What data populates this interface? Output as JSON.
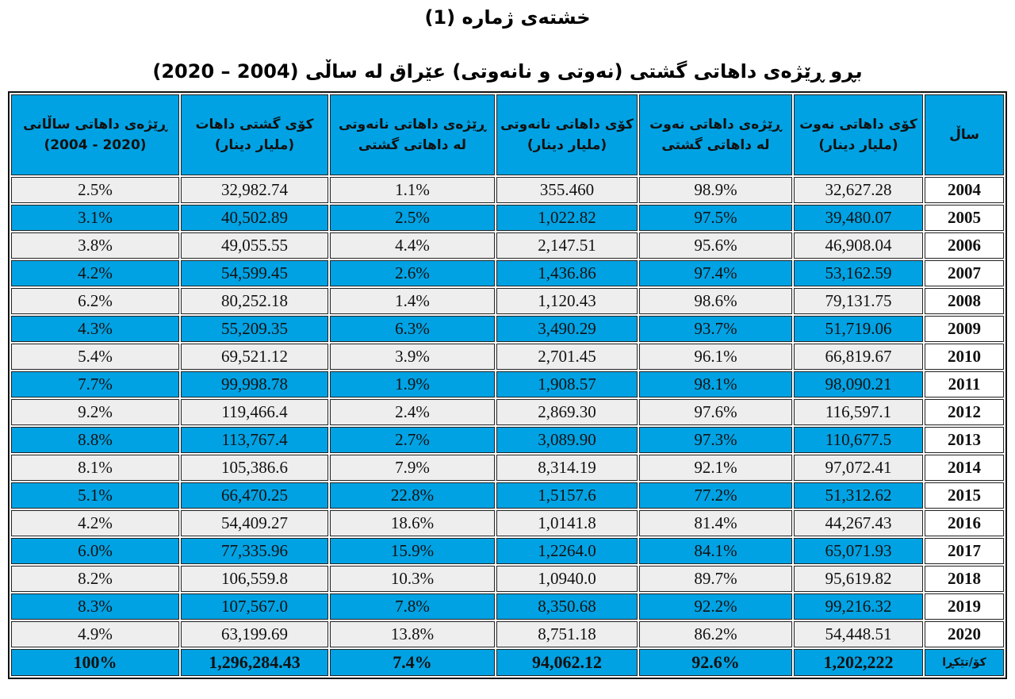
{
  "title": "خشتەی ژمارە (1)",
  "subtitle": "بڕو ڕێژەی داهاتی گشتی (نەوتی و نانەوتی) عێراق لە ساڵی (2004 – 2020)",
  "colors": {
    "header_blue": "#00a2e3",
    "row_gray": "#eeeeee"
  },
  "headers": [
    [
      "ساڵ"
    ],
    [
      "کۆی داهاتی نەوت",
      "(ملیار دینار)"
    ],
    [
      "ڕێژەی داهاتی نەوت",
      "لە داهاتی گشتی"
    ],
    [
      "کۆی داهاتی نانەوتی",
      "(ملیار دینار)"
    ],
    [
      "ڕێژەی داهاتی نانەوتی",
      "لە داهاتی گشتی"
    ],
    [
      "کۆی گشتی داهات",
      "(ملیار دینار)"
    ],
    [
      "ڕێژەی داهاتی ساڵانی",
      "(2020 - 2004)"
    ]
  ],
  "rows": [
    [
      "2004",
      "32,627.28",
      "98.9%",
      "355.460",
      "1.1%",
      "32,982.74",
      "2.5%"
    ],
    [
      "2005",
      "39,480.07",
      "97.5%",
      "1,022.82",
      "2.5%",
      "40,502.89",
      "3.1%"
    ],
    [
      "2006",
      "46,908.04",
      "95.6%",
      "2,147.51",
      "4.4%",
      "49,055.55",
      "3.8%"
    ],
    [
      "2007",
      "53,162.59",
      "97.4%",
      "1,436.86",
      "2.6%",
      "54,599.45",
      "4.2%"
    ],
    [
      "2008",
      "79,131.75",
      "98.6%",
      "1,120.43",
      "1.4%",
      "80,252.18",
      "6.2%"
    ],
    [
      "2009",
      "51,719.06",
      "93.7%",
      "3,490.29",
      "6.3%",
      "55,209.35",
      "4.3%"
    ],
    [
      "2010",
      "66,819.67",
      "96.1%",
      "2,701.45",
      "3.9%",
      "69,521.12",
      "5.4%"
    ],
    [
      "2011",
      "98,090.21",
      "98.1%",
      "1,908.57",
      "1.9%",
      "99,998.78",
      "7.7%"
    ],
    [
      "2012",
      "116,597.1",
      "97.6%",
      "2,869.30",
      "2.4%",
      "119,466.4",
      "9.2%"
    ],
    [
      "2013",
      "110,677.5",
      "97.3%",
      "3,089.90",
      "2.7%",
      "113,767.4",
      "8.8%"
    ],
    [
      "2014",
      "97,072.41",
      "92.1%",
      "8,314.19",
      "7.9%",
      "105,386.6",
      "8.1%"
    ],
    [
      "2015",
      "51,312.62",
      "77.2%",
      "1,5157.6",
      "22.8%",
      "66,470.25",
      "5.1%"
    ],
    [
      "2016",
      "44,267.43",
      "81.4%",
      "1,0141.8",
      "18.6%",
      "54,409.27",
      "4.2%"
    ],
    [
      "2017",
      "65,071.93",
      "84.1%",
      "1,2264.0",
      "15.9%",
      "77,335.96",
      "6.0%"
    ],
    [
      "2018",
      "95,619.82",
      "89.7%",
      "1,0940.0",
      "10.3%",
      "106,559.8",
      "8.2%"
    ],
    [
      "2019",
      "99,216.32",
      "92.2%",
      "8,350.68",
      "7.8%",
      "107,567.0",
      "8.3%"
    ],
    [
      "2020",
      "54,448.51",
      "86.2%",
      "8,751.18",
      "13.8%",
      "63,199.69",
      "4.9%"
    ]
  ],
  "total": [
    "کۆ/تێکڕا",
    "1,202,222",
    "92.6%",
    "94,062.12",
    "7.4%",
    "1,296,284.43",
    "100%"
  ]
}
